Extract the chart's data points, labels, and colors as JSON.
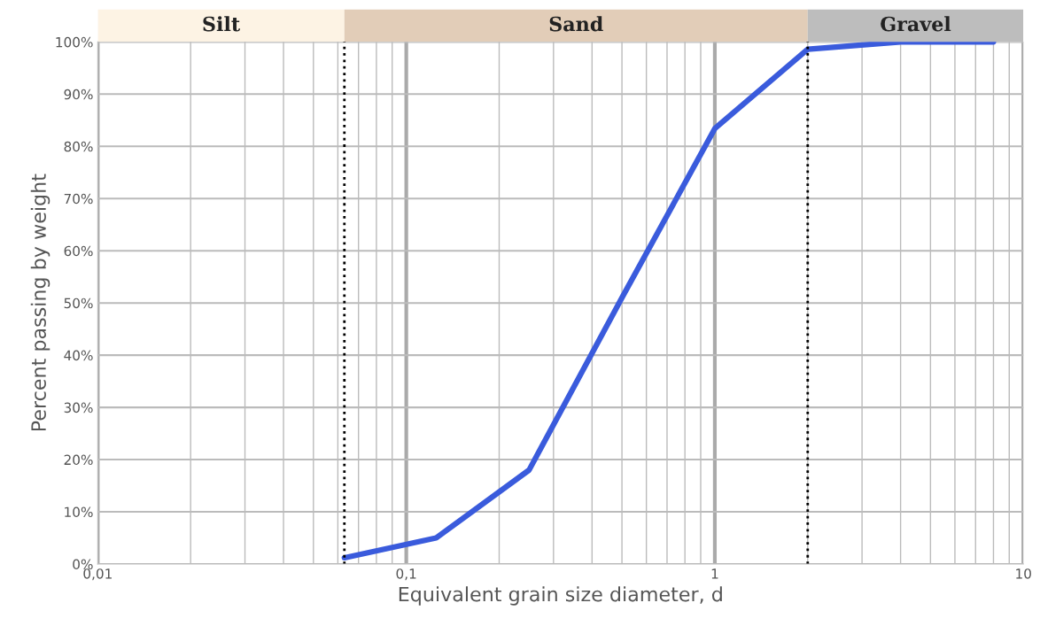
{
  "chart_data": [
    {
      "type": "bar",
      "orientation": "horizontal",
      "categories": [
        null
      ],
      "log": "x",
      "xlim": [
        0.01,
        10
      ],
      "tick_labels": false,
      "series": [
        {
          "name": "Silt",
          "color": "#fdf3e4",
          "base": [
            0.01
          ],
          "values": [
            0.053
          ]
        },
        {
          "name": "Sand",
          "color": "#e2cdb8",
          "base": [
            0.063
          ],
          "values": [
            1.937
          ]
        },
        {
          "name": "Gravel",
          "color": "#bdbdbd",
          "base": [
            2
          ],
          "values": [
            8
          ]
        }
      ]
    },
    {
      "type": "line",
      "xlabel": "Equivalent grain size diameter, d",
      "ylabel": "Percent passing by weight",
      "x": [
        0.063,
        0.125,
        0.25,
        0.5,
        1,
        2,
        4,
        8
      ],
      "series": [
        {
          "color": "#3a5bdc",
          "values": [
            1.2,
            5,
            18,
            51,
            83.4,
            98.6,
            100,
            100
          ]
        }
      ],
      "log": "x",
      "xlim": [
        0.01,
        10
      ],
      "xticks": [
        {
          "value": 0.01,
          "label": "0,01"
        },
        {
          "value": 0.1,
          "label": "0,1"
        },
        {
          "value": 1,
          "label": "1"
        },
        {
          "value": 10,
          "label": "10"
        }
      ],
      "ylim": [
        0,
        100
      ],
      "yticks": [
        {
          "value": 0,
          "label": "0%"
        },
        {
          "value": 10,
          "label": "10%"
        },
        {
          "value": 20,
          "label": "20%"
        },
        {
          "value": 30,
          "label": "30%"
        },
        {
          "value": 40,
          "label": "40%"
        },
        {
          "value": 50,
          "label": "50%"
        },
        {
          "value": 60,
          "label": "60%"
        },
        {
          "value": 70,
          "label": "70%"
        },
        {
          "value": 80,
          "label": "80%"
        },
        {
          "value": 90,
          "label": "90%"
        },
        {
          "value": 100,
          "label": "100%"
        }
      ],
      "grid": true,
      "marker": "none",
      "line_style": "solid",
      "ref_lines": [
        {
          "axis": "x",
          "value": 0.063,
          "color": "#000000",
          "line_style": "dotted"
        },
        {
          "axis": "x",
          "value": 2,
          "color": "#000000",
          "line_style": "dotted"
        }
      ]
    }
  ]
}
